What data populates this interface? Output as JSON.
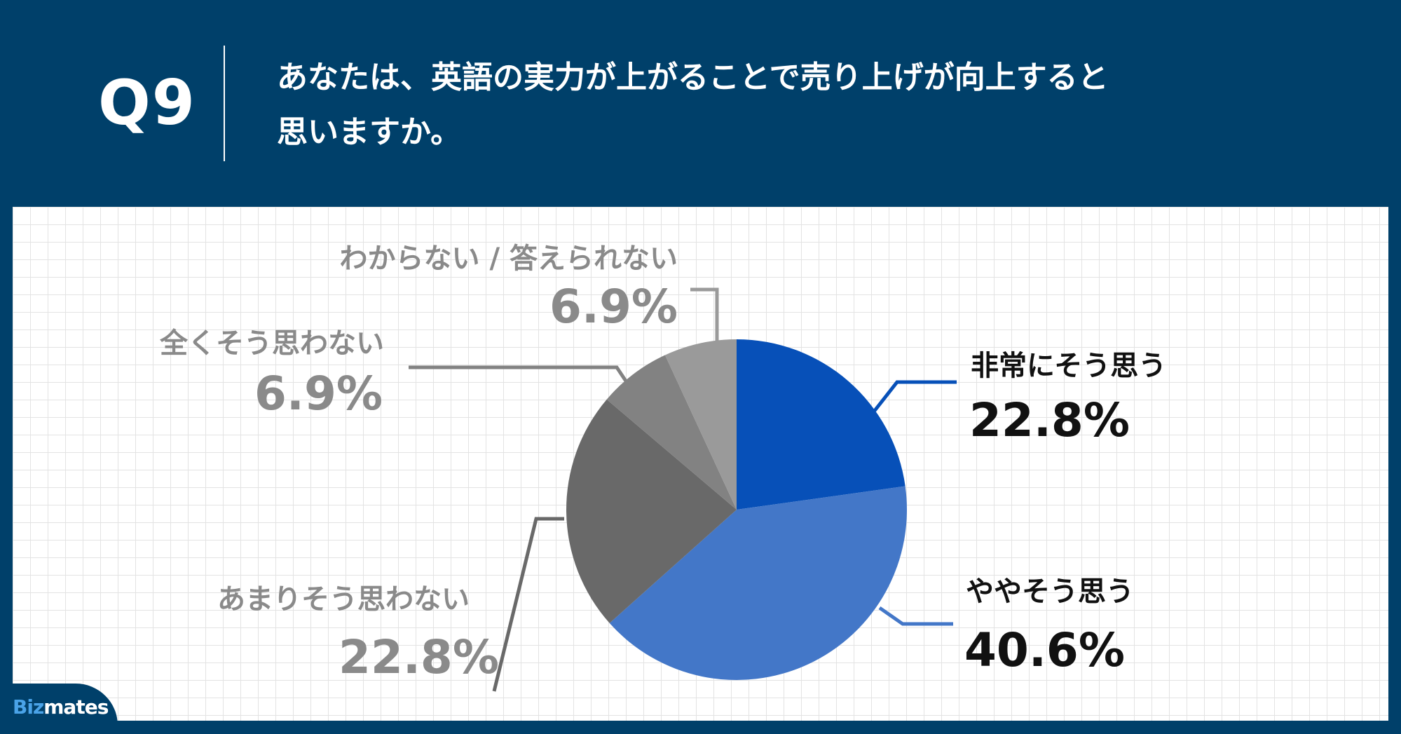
{
  "header": {
    "question_number": "Q9",
    "question_line1": "あなたは、英語の実力が上がることで売り上げが向上すると",
    "question_line2": "思いますか。"
  },
  "logo": {
    "part1": "Biz",
    "part2": "mates"
  },
  "colors": {
    "background": "#00406a",
    "slice1": "#0750b8",
    "slice2": "#4377c8",
    "slice3": "#696969",
    "slice4": "#828282",
    "slice5": "#9a9a9a",
    "label_dark": "#111111",
    "label_gray": "#8a8a8a"
  },
  "chart_data": {
    "type": "pie",
    "categories": [
      "非常にそう思う",
      "ややそう思う",
      "あまりそう思わない",
      "全くそう思わない",
      "わからない / 答えられない"
    ],
    "values": [
      22.8,
      40.6,
      22.8,
      6.9,
      6.9
    ],
    "value_labels": [
      "22.8%",
      "40.6%",
      "22.8%",
      "6.9%",
      "6.9%"
    ],
    "start": "12 o'clock",
    "direction": "clockwise",
    "legend": "none"
  }
}
